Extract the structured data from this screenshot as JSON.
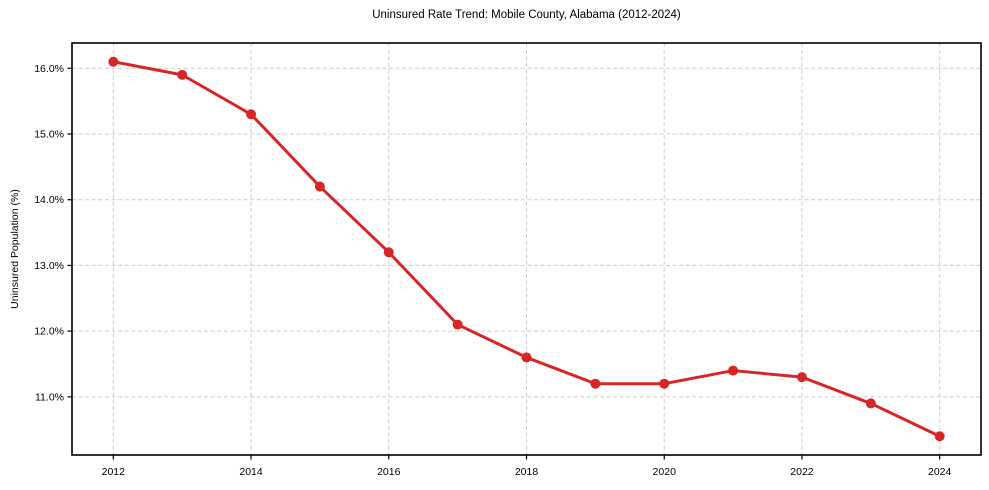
{
  "chart_data": {
    "type": "line",
    "title": "Uninsured Rate Trend: Mobile County, Alabama (2012-2024)",
    "xlabel": "",
    "ylabel": "Uninsured Population (%)",
    "x": [
      2012,
      2013,
      2014,
      2015,
      2016,
      2017,
      2018,
      2019,
      2020,
      2021,
      2022,
      2023,
      2024
    ],
    "values": [
      16.1,
      15.9,
      15.3,
      14.2,
      13.2,
      12.1,
      11.6,
      11.2,
      11.2,
      11.4,
      11.3,
      10.9,
      10.4
    ],
    "xlim": [
      2011.4,
      2024.6
    ],
    "ylim": [
      10.115,
      16.385
    ],
    "x_ticks": [
      2012,
      2014,
      2016,
      2018,
      2020,
      2022,
      2024
    ],
    "x_tick_labels": [
      "2012",
      "2014",
      "2016",
      "2018",
      "2020",
      "2022",
      "2024"
    ],
    "y_ticks": [
      11,
      12,
      13,
      14,
      15,
      16
    ],
    "y_tick_labels": [
      "11.0%",
      "12.0%",
      "13.0%",
      "14.0%",
      "15.0%",
      "16.0%"
    ],
    "grid": true,
    "grid_style": "dashed",
    "grid_color": "#cccccc",
    "line_color": "#d62728",
    "marker": "circle",
    "axis_color": "#000000",
    "text_color": "#000000",
    "background": "#ffffff",
    "legend": "none"
  }
}
